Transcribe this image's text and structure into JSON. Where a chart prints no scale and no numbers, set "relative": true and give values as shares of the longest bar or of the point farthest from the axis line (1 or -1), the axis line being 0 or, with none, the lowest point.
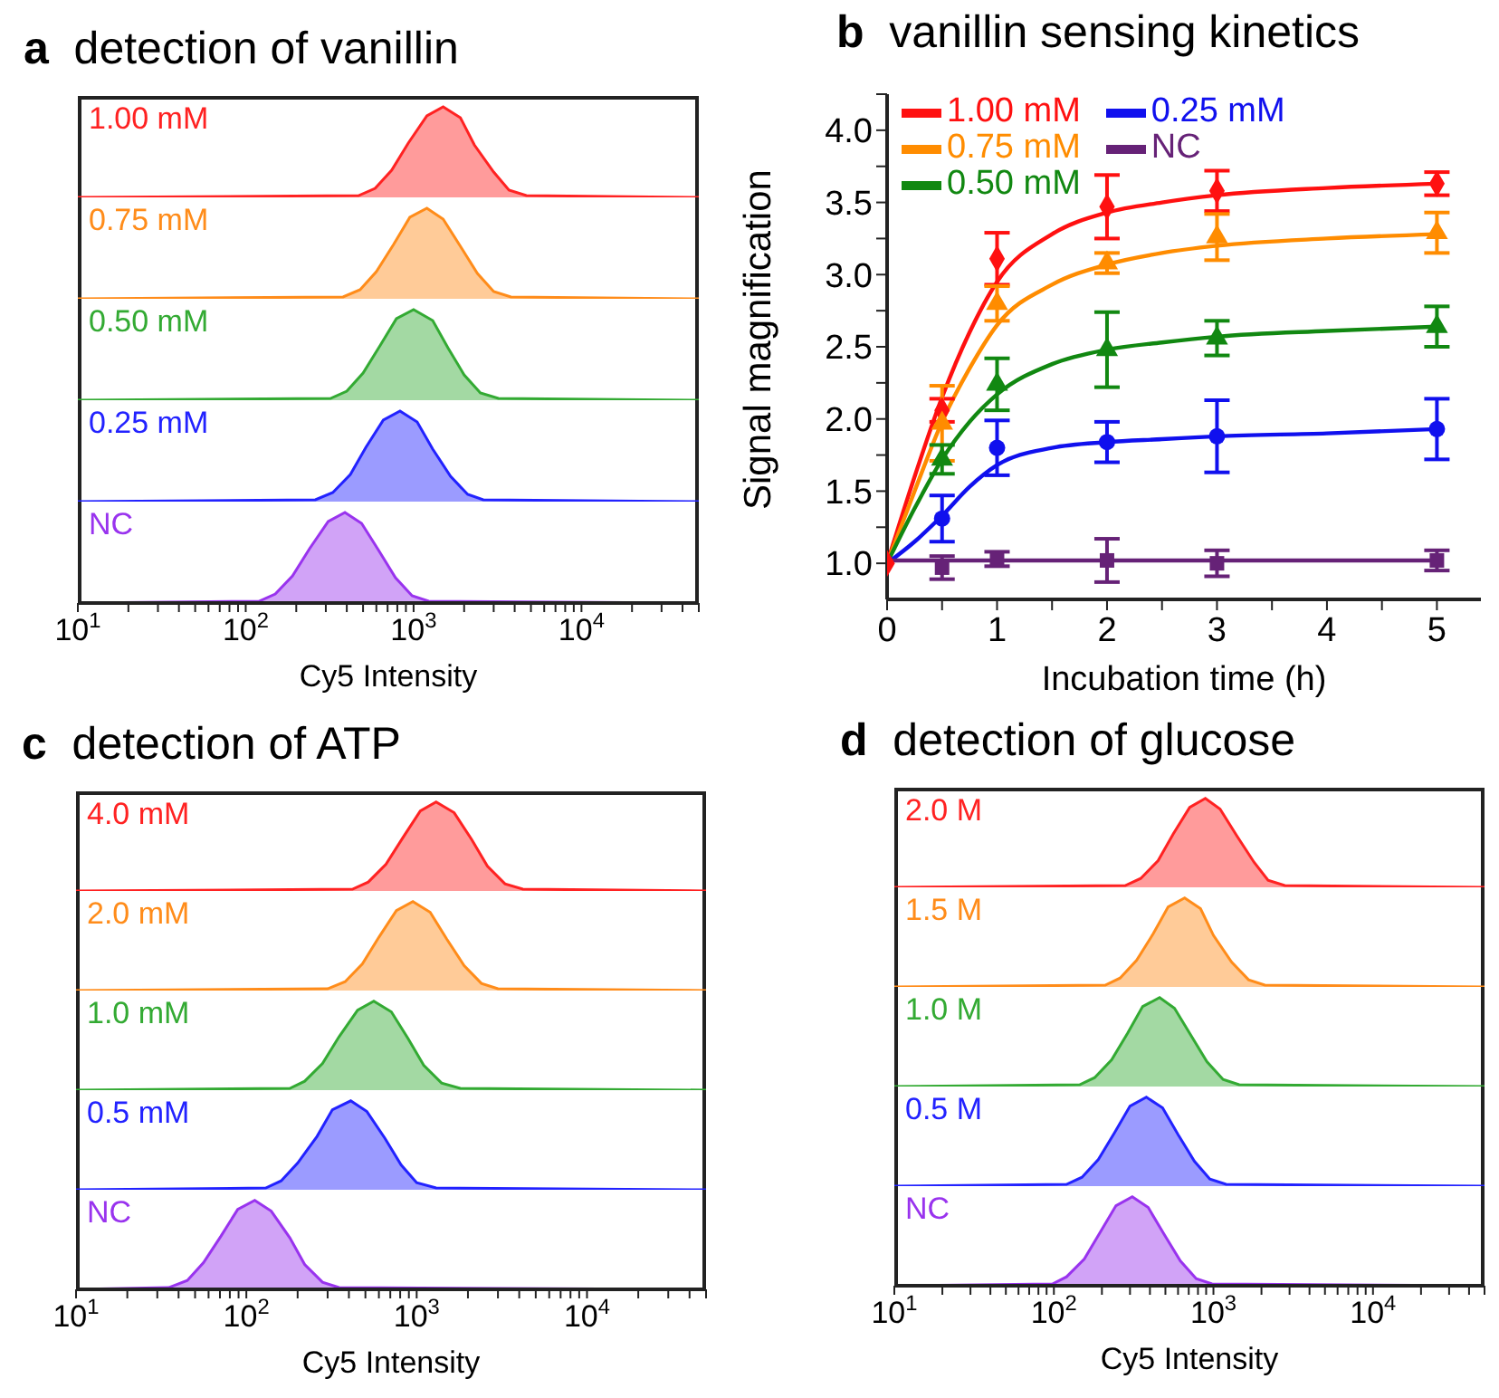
{
  "chart_data": [
    {
      "type": "area",
      "relative": true,
      "title": "a detection of vanillin",
      "log": "x",
      "xlim": [
        10,
        50000
      ],
      "tick_labels": false,
      "series": [
        {
          "name": "1.00 mM",
          "color": "#ff2222",
          "x": [
            10,
            470,
            590,
            740,
            930,
            1200,
            1500,
            1900,
            2300,
            3000,
            3700,
            4700,
            50000
          ],
          "values": [
            0,
            0.02,
            0.1,
            0.3,
            0.6,
            0.9,
            1,
            0.88,
            0.58,
            0.28,
            0.08,
            0.02,
            0
          ]
        }
      ]
    },
    {
      "type": "area",
      "relative": true,
      "log": "x",
      "xlim": [
        10,
        50000
      ],
      "tick_labels": false,
      "series": [
        {
          "name": "0.75 mM",
          "color": "#ff8c1a",
          "x": [
            10,
            380,
            480,
            600,
            760,
            950,
            1200,
            1500,
            1900,
            2400,
            3000,
            3800,
            50000
          ],
          "values": [
            0,
            0.02,
            0.1,
            0.3,
            0.6,
            0.9,
            1,
            0.88,
            0.58,
            0.28,
            0.08,
            0.02,
            0
          ]
        }
      ]
    },
    {
      "type": "area",
      "relative": true,
      "log": "x",
      "xlim": [
        10,
        50000
      ],
      "tick_labels": false,
      "series": [
        {
          "name": "0.50 mM",
          "color": "#33aa33",
          "x": [
            10,
            320,
            400,
            500,
            630,
            790,
            1000,
            1300,
            1600,
            2000,
            2500,
            3200,
            50000
          ],
          "values": [
            0,
            0.02,
            0.1,
            0.3,
            0.6,
            0.9,
            1,
            0.88,
            0.58,
            0.28,
            0.08,
            0.02,
            0
          ]
        }
      ]
    },
    {
      "type": "area",
      "relative": true,
      "log": "x",
      "xlim": [
        10,
        50000
      ],
      "tick_labels": false,
      "series": [
        {
          "name": "0.25 mM",
          "color": "#2222ff",
          "x": [
            10,
            260,
            330,
            420,
            520,
            660,
            830,
            1050,
            1300,
            1660,
            2100,
            2600,
            50000
          ],
          "values": [
            0,
            0.02,
            0.1,
            0.3,
            0.6,
            0.9,
            1,
            0.88,
            0.58,
            0.28,
            0.08,
            0.02,
            0
          ]
        }
      ]
    },
    {
      "type": "area",
      "relative": true,
      "log": "x",
      "xlim": [
        10,
        50000
      ],
      "tick_labels": "x",
      "xlabel": "Cy5 Intensity",
      "xticks": [
        {
          "value": 10,
          "label": "10$^{1}$"
        },
        {
          "value": 20,
          "label": null
        },
        {
          "value": 30,
          "label": null
        },
        {
          "value": 40,
          "label": null
        },
        {
          "value": 50,
          "label": null
        },
        {
          "value": 60,
          "label": null
        },
        {
          "value": 70,
          "label": null
        },
        {
          "value": 80,
          "label": null
        },
        {
          "value": 90,
          "label": null
        },
        {
          "value": 100,
          "label": "10$^{2}$"
        },
        {
          "value": 200,
          "label": null
        },
        {
          "value": 300,
          "label": null
        },
        {
          "value": 400,
          "label": null
        },
        {
          "value": 500,
          "label": null
        },
        {
          "value": 600,
          "label": null
        },
        {
          "value": 700,
          "label": null
        },
        {
          "value": 800,
          "label": null
        },
        {
          "value": 900,
          "label": null
        },
        {
          "value": 1000,
          "label": "10$^{3}$"
        },
        {
          "value": 2000,
          "label": null
        },
        {
          "value": 3000,
          "label": null
        },
        {
          "value": 4000,
          "label": null
        },
        {
          "value": 5000,
          "label": null
        },
        {
          "value": 6000,
          "label": null
        },
        {
          "value": 7000,
          "label": null
        },
        {
          "value": 8000,
          "label": null
        },
        {
          "value": 9000,
          "label": null
        },
        {
          "value": 10000,
          "label": "10$^{4}$"
        },
        {
          "value": 20000,
          "label": null
        },
        {
          "value": 30000,
          "label": null
        },
        {
          "value": 40000,
          "label": null
        },
        {
          "value": 50000,
          "label": null
        }
      ],
      "series": [
        {
          "name": "NC",
          "color": "#9933ee",
          "x": [
            10,
            120,
            150,
            190,
            240,
            310,
            390,
            490,
            620,
            780,
            980,
            1230,
            50000
          ],
          "values": [
            0,
            0.02,
            0.1,
            0.3,
            0.6,
            0.9,
            1,
            0.88,
            0.58,
            0.28,
            0.08,
            0.02,
            0
          ]
        }
      ]
    },
    {
      "type": "line",
      "title": "b vanillin sensing kinetics",
      "xlabel": "Incubation time (h)",
      "ylabel": "Signal magnification",
      "legend": "top left",
      "grid": false,
      "xlim": [
        0,
        5.4
      ],
      "xticks": [
        0,
        {
          "value": 0.5,
          "label": null
        },
        1,
        {
          "value": 1.5,
          "label": null
        },
        2,
        {
          "value": 2.5,
          "label": null
        },
        3,
        {
          "value": 3.5,
          "label": null
        },
        4,
        {
          "value": 4.5,
          "label": null
        },
        5
      ],
      "ylim": [
        0.75,
        4.25
      ],
      "yticks": [
        {
          "value": 1,
          "label": "1.0"
        },
        {
          "value": 1.25,
          "label": null
        },
        {
          "value": 1.5,
          "label": "1.5"
        },
        {
          "value": 1.75,
          "label": null
        },
        {
          "value": 2,
          "label": "2.0"
        },
        {
          "value": 2.25,
          "label": null
        },
        {
          "value": 2.5,
          "label": "2.5"
        },
        {
          "value": 2.75,
          "label": null
        },
        {
          "value": 3,
          "label": "3.0"
        },
        {
          "value": 3.25,
          "label": null
        },
        {
          "value": 3.5,
          "label": "3.5"
        },
        {
          "value": 3.75,
          "label": null
        },
        {
          "value": 4,
          "label": "4.0"
        },
        {
          "value": 4.25,
          "label": null
        }
      ],
      "series": [
        {
          "type": "line",
          "name": "1.00 mM",
          "color": "#ff1010",
          "marker": "none",
          "x": [
            0,
            0.25,
            0.5,
            0.75,
            1,
            1.5,
            2,
            2.5,
            3,
            4,
            5
          ],
          "values": [
            1,
            1.6,
            2.15,
            2.6,
            2.95,
            3.28,
            3.43,
            3.5,
            3.55,
            3.6,
            3.63
          ]
        },
        {
          "type": "line",
          "name": "0.75 mM",
          "color": "#ff8c00",
          "marker": "none",
          "x": [
            0,
            0.25,
            0.5,
            0.75,
            1,
            1.5,
            2,
            2.5,
            3,
            4,
            5
          ],
          "values": [
            1,
            1.5,
            1.98,
            2.35,
            2.65,
            2.93,
            3.07,
            3.15,
            3.2,
            3.25,
            3.28
          ]
        },
        {
          "type": "line",
          "name": "0.50 mM",
          "color": "#118811",
          "marker": "none",
          "x": [
            0,
            0.25,
            0.5,
            0.75,
            1,
            1.5,
            2,
            2.5,
            3,
            4,
            5
          ],
          "values": [
            1,
            1.38,
            1.72,
            1.98,
            2.17,
            2.38,
            2.48,
            2.53,
            2.57,
            2.61,
            2.64
          ]
        },
        {
          "type": "line",
          "name": "0.25 mM",
          "color": "#1010ee",
          "marker": "none",
          "x": [
            0,
            0.25,
            0.5,
            0.75,
            1,
            1.5,
            2,
            2.5,
            3,
            4,
            5
          ],
          "values": [
            1,
            1.15,
            1.33,
            1.53,
            1.68,
            1.8,
            1.84,
            1.86,
            1.88,
            1.9,
            1.93
          ]
        },
        {
          "type": "line",
          "name": "NC",
          "color": "#662277",
          "marker": "none",
          "x": [
            0,
            5
          ],
          "values": [
            1.02,
            1.02
          ]
        },
        {
          "type": "scatter",
          "color": "#ff1010",
          "marker": "diamond",
          "x": [
            0,
            0.5,
            1,
            2,
            3,
            5
          ],
          "values": [
            1,
            2.06,
            3.11,
            3.47,
            3.58,
            3.63
          ],
          "errors": [
            null,
            0.08,
            0.18,
            0.22,
            0.14,
            0.08
          ]
        },
        {
          "type": "scatter",
          "color": "#ff8c00",
          "marker": "triangle",
          "x": [
            0.5,
            1,
            2,
            3,
            5
          ],
          "values": [
            1.97,
            2.8,
            3.08,
            3.26,
            3.29
          ],
          "errors": [
            0.26,
            0.12,
            0.07,
            0.16,
            0.14
          ]
        },
        {
          "type": "scatter",
          "color": "#118811",
          "marker": "triangle",
          "x": [
            0.5,
            1,
            2,
            3,
            5
          ],
          "values": [
            1.72,
            2.24,
            2.48,
            2.56,
            2.64
          ],
          "errors": [
            0.1,
            0.18,
            0.26,
            0.12,
            0.14
          ]
        },
        {
          "type": "scatter",
          "color": "#1010ee",
          "marker": "circle",
          "x": [
            0.5,
            1,
            2,
            3,
            5
          ],
          "values": [
            1.31,
            1.8,
            1.84,
            1.88,
            1.93
          ],
          "errors": [
            0.16,
            0.19,
            0.14,
            0.25,
            0.21
          ]
        },
        {
          "type": "scatter",
          "color": "#662277",
          "marker": "square",
          "x": [
            0.5,
            1,
            2,
            3,
            5
          ],
          "values": [
            0.97,
            1.03,
            1.02,
            1,
            1.02
          ],
          "errors": [
            0.08,
            0.05,
            0.15,
            0.09,
            0.07
          ]
        }
      ]
    },
    {
      "type": "area",
      "relative": true,
      "title": "c detection of ATP",
      "log": "x",
      "xlim": [
        10,
        50000
      ],
      "tick_labels": false,
      "series": [
        {
          "name": "4.0 mM",
          "color": "#ff2222",
          "x": [
            10,
            420,
            520,
            660,
            830,
            1050,
            1300,
            1660,
            2100,
            2600,
            3300,
            4200,
            50000
          ],
          "values": [
            0,
            0.02,
            0.1,
            0.3,
            0.6,
            0.9,
            1,
            0.88,
            0.58,
            0.28,
            0.08,
            0.02,
            0
          ]
        }
      ]
    },
    {
      "type": "area",
      "relative": true,
      "log": "x",
      "xlim": [
        10,
        50000
      ],
      "tick_labels": false,
      "series": [
        {
          "name": "2.0 mM",
          "color": "#ff8c1a",
          "x": [
            10,
            300,
            380,
            480,
            600,
            760,
            950,
            1200,
            1500,
            1900,
            2400,
            3000,
            50000
          ],
          "values": [
            0,
            0.02,
            0.1,
            0.3,
            0.6,
            0.9,
            1,
            0.88,
            0.58,
            0.28,
            0.08,
            0.02,
            0
          ]
        }
      ]
    },
    {
      "type": "area",
      "relative": true,
      "log": "x",
      "xlim": [
        10,
        50000
      ],
      "tick_labels": false,
      "series": [
        {
          "name": "1.0 mM",
          "color": "#33aa33",
          "x": [
            10,
            180,
            220,
            280,
            350,
            450,
            560,
            710,
            890,
            1100,
            1400,
            1800,
            50000
          ],
          "values": [
            0,
            0.02,
            0.1,
            0.3,
            0.6,
            0.9,
            1,
            0.88,
            0.58,
            0.28,
            0.08,
            0.02,
            0
          ]
        }
      ]
    },
    {
      "type": "area",
      "relative": true,
      "log": "x",
      "xlim": [
        10,
        50000
      ],
      "tick_labels": false,
      "series": [
        {
          "name": "0.5 mM",
          "color": "#2222ff",
          "x": [
            10,
            130,
            160,
            200,
            260,
            320,
            410,
            510,
            650,
            810,
            1000,
            1300,
            50000
          ],
          "values": [
            0,
            0.02,
            0.1,
            0.3,
            0.6,
            0.9,
            1,
            0.88,
            0.58,
            0.28,
            0.08,
            0.02,
            0
          ]
        }
      ]
    },
    {
      "type": "area",
      "relative": true,
      "log": "x",
      "xlim": [
        10,
        50000
      ],
      "tick_labels": "x",
      "xlabel": "Cy5 Intensity",
      "xticks": [
        {
          "value": 10,
          "label": "10$^{1}$"
        },
        {
          "value": 20,
          "label": null
        },
        {
          "value": 30,
          "label": null
        },
        {
          "value": 40,
          "label": null
        },
        {
          "value": 50,
          "label": null
        },
        {
          "value": 60,
          "label": null
        },
        {
          "value": 70,
          "label": null
        },
        {
          "value": 80,
          "label": null
        },
        {
          "value": 90,
          "label": null
        },
        {
          "value": 100,
          "label": "10$^{2}$"
        },
        {
          "value": 200,
          "label": null
        },
        {
          "value": 300,
          "label": null
        },
        {
          "value": 400,
          "label": null
        },
        {
          "value": 500,
          "label": null
        },
        {
          "value": 600,
          "label": null
        },
        {
          "value": 700,
          "label": null
        },
        {
          "value": 800,
          "label": null
        },
        {
          "value": 900,
          "label": null
        },
        {
          "value": 1000,
          "label": "10$^{3}$"
        },
        {
          "value": 2000,
          "label": null
        },
        {
          "value": 3000,
          "label": null
        },
        {
          "value": 4000,
          "label": null
        },
        {
          "value": 5000,
          "label": null
        },
        {
          "value": 6000,
          "label": null
        },
        {
          "value": 7000,
          "label": null
        },
        {
          "value": 8000,
          "label": null
        },
        {
          "value": 9000,
          "label": null
        },
        {
          "value": 10000,
          "label": "10$^{4}$"
        },
        {
          "value": 20000,
          "label": null
        },
        {
          "value": 30000,
          "label": null
        },
        {
          "value": 40000,
          "label": null
        },
        {
          "value": 50000,
          "label": null
        }
      ],
      "series": [
        {
          "name": "NC",
          "color": "#9933ee",
          "x": [
            10,
            35,
            45,
            56,
            71,
            89,
            112,
            140,
            180,
            220,
            280,
            350,
            50000
          ],
          "values": [
            0,
            0.02,
            0.1,
            0.3,
            0.6,
            0.9,
            1,
            0.88,
            0.58,
            0.28,
            0.08,
            0.02,
            0
          ]
        }
      ]
    },
    {
      "type": "area",
      "relative": true,
      "title": "d detection of glucose",
      "log": "x",
      "xlim": [
        10,
        50000
      ],
      "tick_labels": false,
      "series": [
        {
          "name": "2.0 M",
          "color": "#ff2222",
          "x": [
            10,
            280,
            350,
            450,
            560,
            710,
            890,
            1100,
            1400,
            1800,
            2200,
            2800,
            50000
          ],
          "values": [
            0,
            0.02,
            0.1,
            0.3,
            0.6,
            0.9,
            1,
            0.88,
            0.58,
            0.28,
            0.08,
            0.02,
            0
          ]
        }
      ]
    },
    {
      "type": "area",
      "relative": true,
      "log": "x",
      "xlim": [
        10,
        50000
      ],
      "tick_labels": false,
      "series": [
        {
          "name": "1.5 M",
          "color": "#ff8c1a",
          "x": [
            10,
            210,
            260,
            330,
            420,
            520,
            660,
            830,
            1000,
            1300,
            1660,
            2100,
            50000
          ],
          "values": [
            0,
            0.02,
            0.1,
            0.3,
            0.6,
            0.9,
            1,
            0.88,
            0.58,
            0.28,
            0.08,
            0.02,
            0
          ]
        }
      ]
    },
    {
      "type": "area",
      "relative": true,
      "log": "x",
      "xlim": [
        10,
        50000
      ],
      "tick_labels": false,
      "series": [
        {
          "name": "1.0 M",
          "color": "#33aa33",
          "x": [
            10,
            145,
            180,
            230,
            290,
            360,
            460,
            570,
            720,
            910,
            1150,
            1450,
            50000
          ],
          "values": [
            0,
            0.02,
            0.1,
            0.3,
            0.6,
            0.9,
            1,
            0.88,
            0.58,
            0.28,
            0.08,
            0.02,
            0
          ]
        }
      ]
    },
    {
      "type": "area",
      "relative": true,
      "log": "x",
      "xlim": [
        10,
        50000
      ],
      "tick_labels": false,
      "series": [
        {
          "name": "0.5 M",
          "color": "#2222ff",
          "x": [
            10,
            120,
            150,
            190,
            240,
            300,
            380,
            480,
            600,
            760,
            950,
            1200,
            50000
          ],
          "values": [
            0,
            0.02,
            0.1,
            0.3,
            0.6,
            0.9,
            1,
            0.88,
            0.58,
            0.28,
            0.08,
            0.02,
            0
          ]
        }
      ]
    },
    {
      "type": "area",
      "relative": true,
      "log": "x",
      "xlim": [
        10,
        50000
      ],
      "tick_labels": "x",
      "xlabel": "Cy5 Intensity",
      "xticks": [
        {
          "value": 10,
          "label": "10$^{1}$"
        },
        {
          "value": 20,
          "label": null
        },
        {
          "value": 30,
          "label": null
        },
        {
          "value": 40,
          "label": null
        },
        {
          "value": 50,
          "label": null
        },
        {
          "value": 60,
          "label": null
        },
        {
          "value": 70,
          "label": null
        },
        {
          "value": 80,
          "label": null
        },
        {
          "value": 90,
          "label": null
        },
        {
          "value": 100,
          "label": "10$^{2}$"
        },
        {
          "value": 200,
          "label": null
        },
        {
          "value": 300,
          "label": null
        },
        {
          "value": 400,
          "label": null
        },
        {
          "value": 500,
          "label": null
        },
        {
          "value": 600,
          "label": null
        },
        {
          "value": 700,
          "label": null
        },
        {
          "value": 800,
          "label": null
        },
        {
          "value": 900,
          "label": null
        },
        {
          "value": 1000,
          "label": "10$^{3}$"
        },
        {
          "value": 2000,
          "label": null
        },
        {
          "value": 3000,
          "label": null
        },
        {
          "value": 4000,
          "label": null
        },
        {
          "value": 5000,
          "label": null
        },
        {
          "value": 6000,
          "label": null
        },
        {
          "value": 7000,
          "label": null
        },
        {
          "value": 8000,
          "label": null
        },
        {
          "value": 9000,
          "label": null
        },
        {
          "value": 10000,
          "label": "10$^{4}$"
        },
        {
          "value": 20000,
          "label": null
        },
        {
          "value": 30000,
          "label": null
        },
        {
          "value": 40000,
          "label": null
        },
        {
          "value": 50000,
          "label": null
        }
      ],
      "series": [
        {
          "name": "NC",
          "color": "#9933ee",
          "x": [
            10,
            98,
            120,
            155,
            195,
            245,
            310,
            390,
            490,
            620,
            780,
            980,
            50000
          ],
          "values": [
            0,
            0.02,
            0.1,
            0.3,
            0.6,
            0.9,
            1,
            0.88,
            0.58,
            0.28,
            0.08,
            0.02,
            0
          ]
        }
      ]
    }
  ]
}
